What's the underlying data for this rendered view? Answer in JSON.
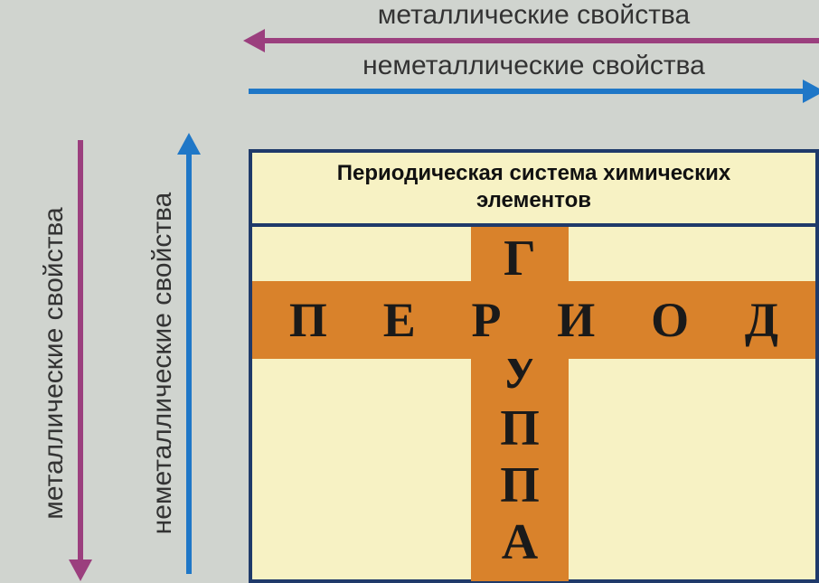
{
  "labels": {
    "metallic": "металлические свойства",
    "nonmetallic": "неметаллические свойства"
  },
  "box": {
    "title_l1": "Периодическая система химических",
    "title_l2": "элементов"
  },
  "period_letters": [
    "П",
    "Е",
    "Р",
    "И",
    "О",
    "Д"
  ],
  "group_letters": [
    "Г",
    "Р",
    "У",
    "П",
    "П",
    "А"
  ],
  "colors": {
    "purple": "#9b3f7e",
    "blue": "#1f77c7",
    "orange": "#d9822b",
    "box_bg": "#f7f2c4",
    "box_border": "#1f3a6a",
    "page_bg": "#d0d4cf"
  }
}
